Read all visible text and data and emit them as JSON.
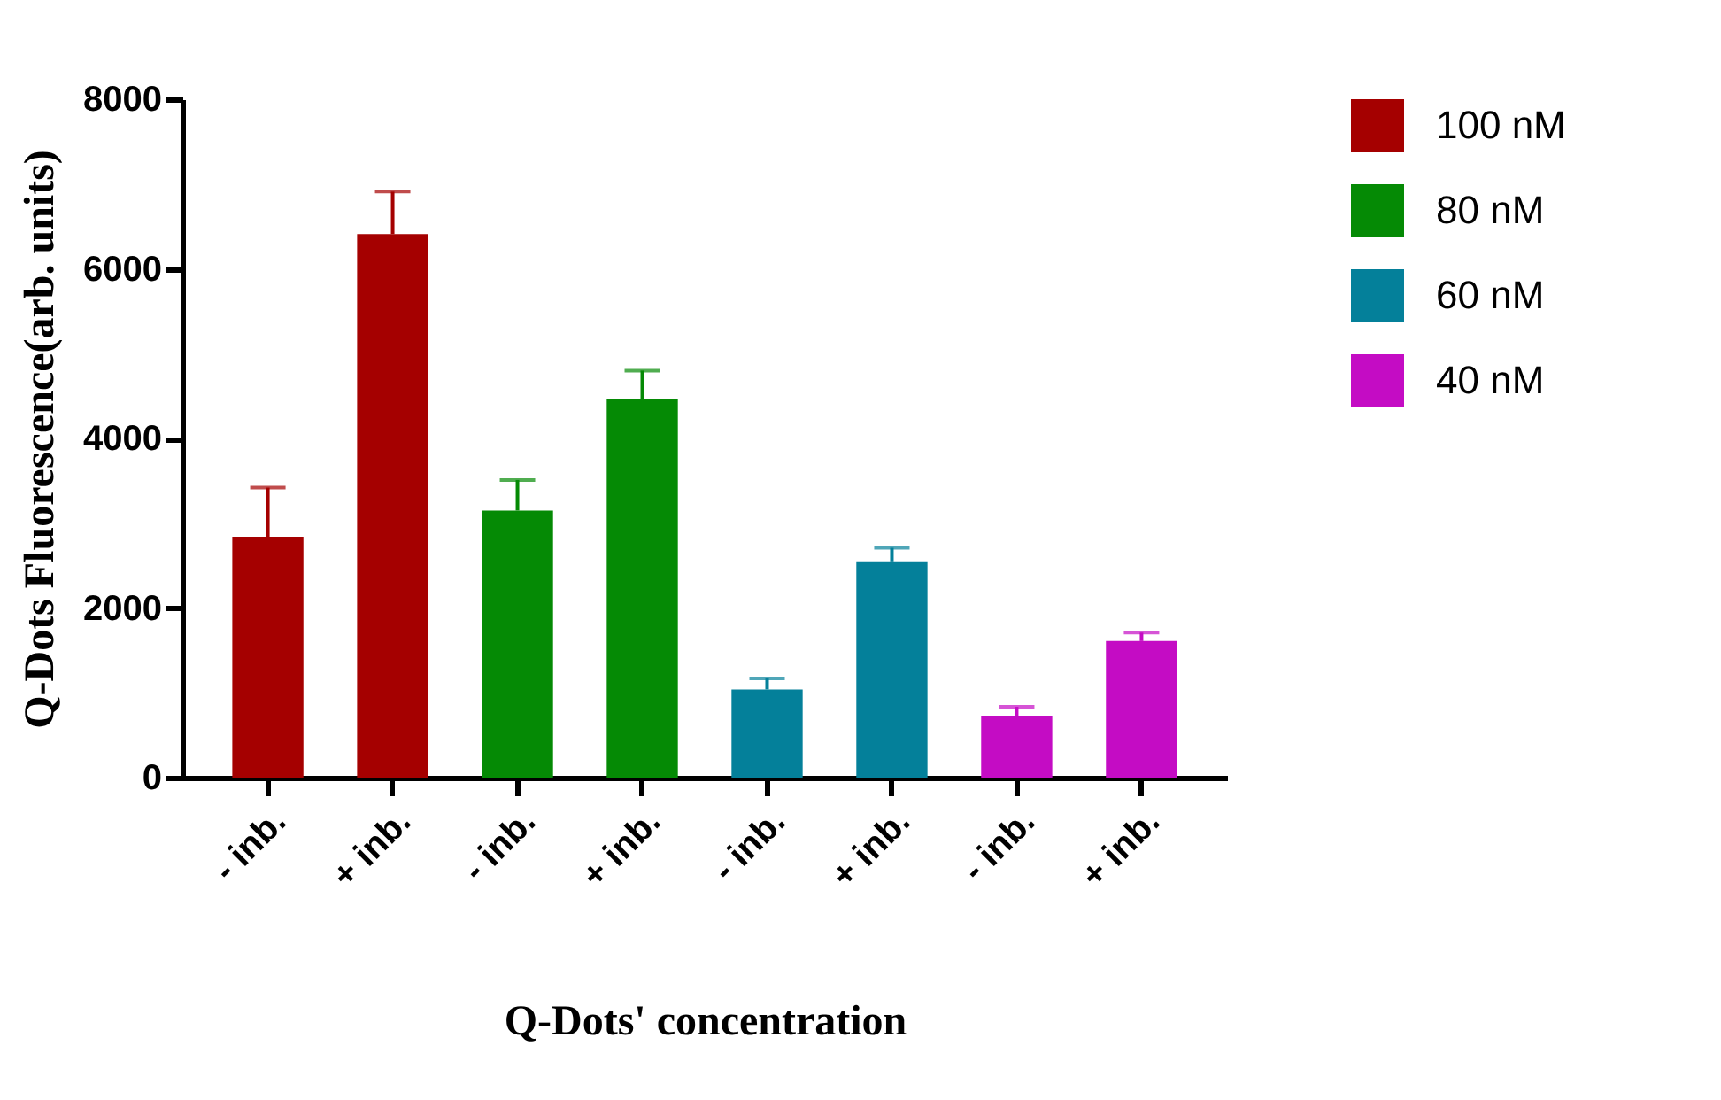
{
  "chart_data": {
    "type": "bar",
    "xlabel": "Q-Dots' concentration",
    "ylabel": "Q-Dots Fluorescence(arb. units)",
    "categories": [
      "- inb.",
      "+ inb.",
      "- inb.",
      "+ inb.",
      "- inb.",
      "+ inb.",
      "- inb.",
      "+ inb."
    ],
    "series": [
      {
        "name": "100 nM",
        "color": "#a50000",
        "values": [
          2840,
          6410,
          null,
          null,
          null,
          null,
          null,
          null
        ],
        "errors": [
          [
            2840,
            3420
          ],
          [
            6410,
            6910
          ],
          null,
          null,
          null,
          null,
          null,
          null
        ]
      },
      {
        "name": "80 nM",
        "color": "#058a05",
        "values": [
          null,
          null,
          3150,
          4470,
          null,
          null,
          null,
          null
        ],
        "errors": [
          null,
          null,
          [
            3150,
            3510
          ],
          [
            4470,
            4800
          ],
          null,
          null,
          null,
          null
        ]
      },
      {
        "name": "60 nM",
        "color": "#04809a",
        "values": [
          null,
          null,
          null,
          null,
          1040,
          2550,
          null,
          null
        ],
        "errors": [
          null,
          null,
          null,
          null,
          [
            1040,
            1170
          ],
          [
            2550,
            2710
          ],
          null,
          null
        ]
      },
      {
        "name": "40 nM",
        "color": "#c40cc4",
        "values": [
          null,
          null,
          null,
          null,
          null,
          null,
          730,
          1610
        ],
        "errors": [
          null,
          null,
          null,
          null,
          null,
          null,
          [
            730,
            835
          ],
          [
            1610,
            1710
          ]
        ]
      }
    ],
    "ylim": [
      0,
      8000
    ],
    "yticks": [
      0,
      2000,
      4000,
      6000,
      8000
    ],
    "grid": false,
    "legend": "top right"
  }
}
